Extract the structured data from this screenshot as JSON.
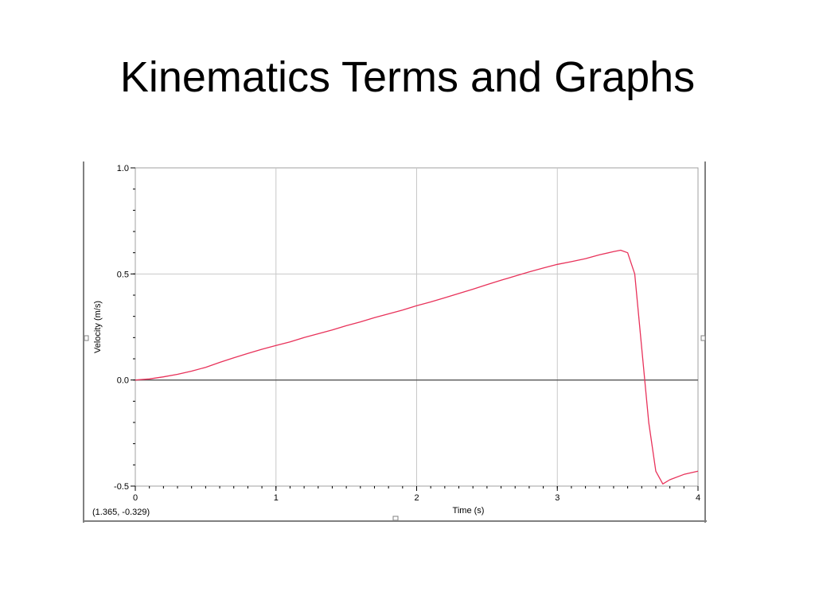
{
  "slide": {
    "title": "Kinematics Terms and Graphs"
  },
  "readout": "(1.365, -0.329)",
  "colors": {
    "series": "#e8325a",
    "grid": "#c8c8c8",
    "axis_zero": "#555555",
    "frame": "#808080"
  },
  "chart_data": {
    "type": "line",
    "title": "",
    "xlabel": "Time (s)",
    "ylabel": "Velocity (m/s)",
    "xlim": [
      0,
      4
    ],
    "ylim": [
      -0.5,
      1.0
    ],
    "x_ticks": [
      0,
      1,
      2,
      3,
      4
    ],
    "x_tick_labels": [
      "0",
      "1",
      "2",
      "3",
      "4"
    ],
    "y_ticks": [
      -0.5,
      0.0,
      0.5,
      1.0
    ],
    "y_tick_labels": [
      "-0.5",
      "0.0",
      "0.5",
      "1.0"
    ],
    "grid": true,
    "series": [
      {
        "x": [
          0.0,
          0.1,
          0.2,
          0.3,
          0.4,
          0.5,
          0.6,
          0.7,
          0.8,
          0.9,
          1.0,
          1.1,
          1.2,
          1.3,
          1.4,
          1.5,
          1.6,
          1.7,
          1.8,
          1.9,
          2.0,
          2.1,
          2.2,
          2.3,
          2.4,
          2.5,
          2.6,
          2.7,
          2.8,
          2.9,
          3.0,
          3.1,
          3.2,
          3.3,
          3.4,
          3.45,
          3.5,
          3.55,
          3.6,
          3.65,
          3.7,
          3.75,
          3.8,
          3.9,
          4.0
        ],
        "y": [
          0.0,
          0.005,
          0.015,
          0.027,
          0.042,
          0.06,
          0.083,
          0.105,
          0.125,
          0.145,
          0.163,
          0.18,
          0.2,
          0.218,
          0.236,
          0.256,
          0.274,
          0.294,
          0.312,
          0.33,
          0.35,
          0.368,
          0.388,
          0.408,
          0.428,
          0.45,
          0.47,
          0.49,
          0.51,
          0.528,
          0.545,
          0.558,
          0.572,
          0.59,
          0.605,
          0.612,
          0.6,
          0.5,
          0.15,
          -0.2,
          -0.43,
          -0.49,
          -0.47,
          -0.445,
          -0.43
        ]
      }
    ]
  }
}
